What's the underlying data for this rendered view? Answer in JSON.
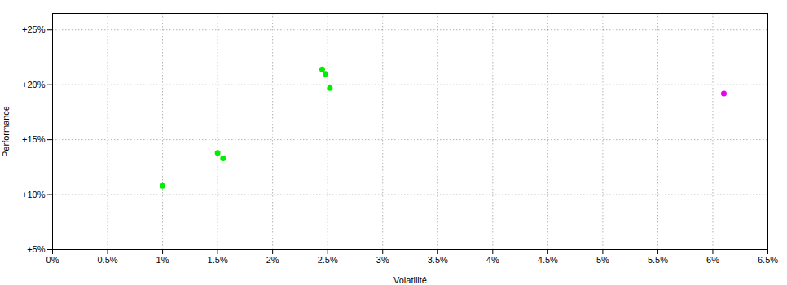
{
  "chart_data": {
    "type": "scatter",
    "xlabel": "Volatilité",
    "ylabel": "Performance",
    "xlim": [
      0.0,
      0.065
    ],
    "ylim": [
      0.05,
      0.265
    ],
    "xticks": [
      {
        "value": 0.0,
        "label": "0%"
      },
      {
        "value": 0.005,
        "label": "0.5%"
      },
      {
        "value": 0.01,
        "label": "1%"
      },
      {
        "value": 0.015,
        "label": "1.5%"
      },
      {
        "value": 0.02,
        "label": "2%"
      },
      {
        "value": 0.025,
        "label": "2.5%"
      },
      {
        "value": 0.03,
        "label": "3%"
      },
      {
        "value": 0.035,
        "label": "3.5%"
      },
      {
        "value": 0.04,
        "label": "4%"
      },
      {
        "value": 0.045,
        "label": "4.5%"
      },
      {
        "value": 0.05,
        "label": "5%"
      },
      {
        "value": 0.055,
        "label": "5.5%"
      },
      {
        "value": 0.06,
        "label": "6%"
      },
      {
        "value": 0.065,
        "label": "6.5%"
      }
    ],
    "yticks": [
      {
        "value": 0.05,
        "label": "+5%"
      },
      {
        "value": 0.1,
        "label": "+10%"
      },
      {
        "value": 0.15,
        "label": "+15%"
      },
      {
        "value": 0.2,
        "label": "+20%"
      },
      {
        "value": 0.25,
        "label": "+25%"
      }
    ],
    "grid": true,
    "series": [
      {
        "color": "#00ee00",
        "x": [
          0.01,
          0.015,
          0.0155,
          0.0245,
          0.0248,
          0.0252
        ],
        "values": [
          0.108,
          0.138,
          0.133,
          0.214,
          0.21,
          0.197
        ]
      },
      {
        "color": "#ee00ee",
        "x": [
          0.061
        ],
        "values": [
          0.192
        ]
      }
    ]
  }
}
